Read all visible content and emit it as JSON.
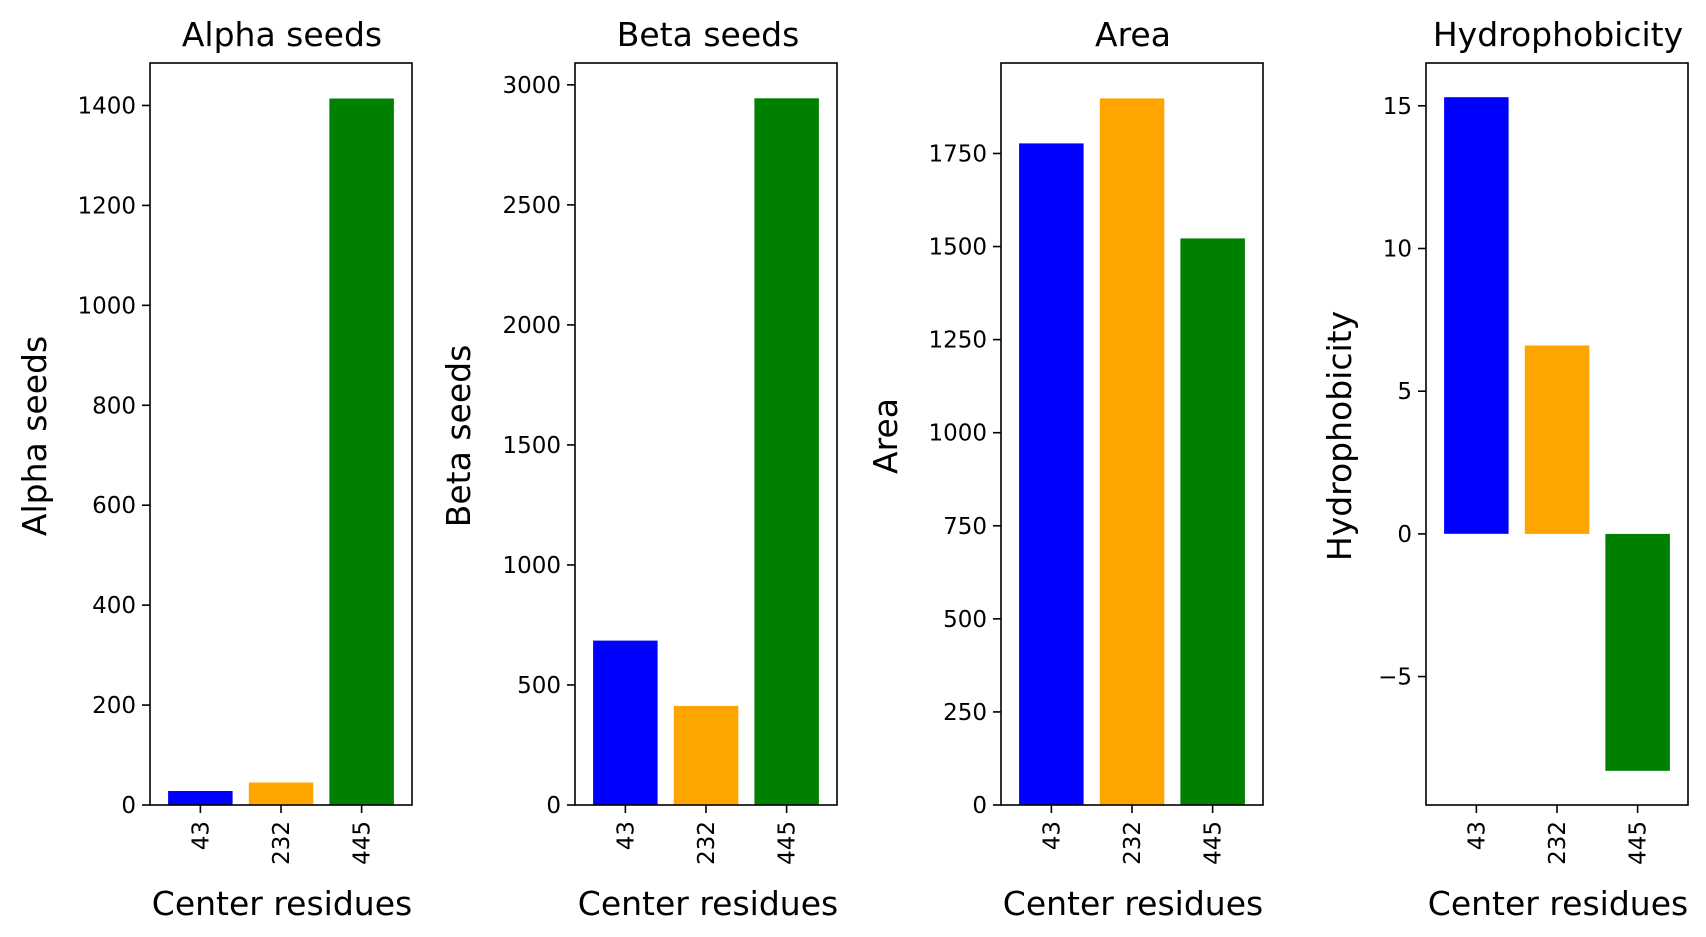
{
  "chart_data": [
    {
      "type": "bar",
      "title": "Alpha seeds",
      "xlabel": "Center residues",
      "ylabel": "Alpha seeds",
      "categories": [
        "43",
        "232",
        "445"
      ],
      "values": [
        28,
        45,
        1414
      ],
      "colors": [
        "#0000ff",
        "#ffa500",
        "#008000"
      ],
      "ylim": [
        0,
        1485
      ],
      "yticks": [
        0,
        200,
        400,
        600,
        800,
        1000,
        1200,
        1400
      ],
      "ytick_labels": [
        "0",
        "200",
        "400",
        "600",
        "800",
        "1000",
        "1200",
        "1400"
      ]
    },
    {
      "type": "bar",
      "title": "Beta seeds",
      "xlabel": "Center residues",
      "ylabel": "Beta seeds",
      "categories": [
        "43",
        "232",
        "445"
      ],
      "values": [
        685,
        413,
        2944
      ],
      "colors": [
        "#0000ff",
        "#ffa500",
        "#008000"
      ],
      "ylim": [
        0,
        3091
      ],
      "yticks": [
        0,
        500,
        1000,
        1500,
        2000,
        2500,
        3000
      ],
      "ytick_labels": [
        "0",
        "500",
        "1000",
        "1500",
        "2000",
        "2500",
        "3000"
      ]
    },
    {
      "type": "bar",
      "title": "Area",
      "xlabel": "Center residues",
      "ylabel": "Area",
      "categories": [
        "43",
        "232",
        "445"
      ],
      "values": [
        1777,
        1898,
        1522
      ],
      "colors": [
        "#0000ff",
        "#ffa500",
        "#008000"
      ],
      "ylim": [
        0,
        1993
      ],
      "yticks": [
        0,
        250,
        500,
        750,
        1000,
        1250,
        1500,
        1750
      ],
      "ytick_labels": [
        "0",
        "250",
        "500",
        "750",
        "1000",
        "1250",
        "1500",
        "1750"
      ]
    },
    {
      "type": "bar",
      "title": "Hydrophobicity",
      "xlabel": "Center residues",
      "ylabel": "Hydrophobicity",
      "categories": [
        "43",
        "232",
        "445"
      ],
      "values": [
        15.3,
        6.6,
        -8.3
      ],
      "colors": [
        "#0000ff",
        "#ffa500",
        "#008000"
      ],
      "ylim": [
        -9.5,
        16.5
      ],
      "yticks": [
        -5,
        0,
        5,
        10,
        15
      ],
      "ytick_labels": [
        "−5",
        "0",
        "5",
        "10",
        "15"
      ]
    }
  ]
}
